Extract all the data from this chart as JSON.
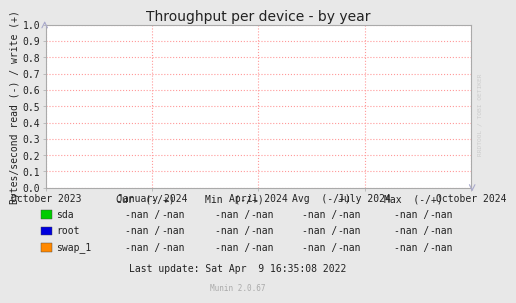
{
  "title": "Throughput per device - by year",
  "ylabel": "Bytes/second read (-) / write (+)",
  "ylim": [
    0,
    1.0
  ],
  "yticks": [
    0.0,
    0.1,
    0.2,
    0.3,
    0.4,
    0.5,
    0.6,
    0.7,
    0.8,
    0.9,
    1.0
  ],
  "x_tick_labels": [
    "October 2023",
    "January 2024",
    "April 2024",
    "July 2024",
    "October 2024"
  ],
  "x_tick_positions": [
    0,
    0.25,
    0.5,
    0.75,
    1.0
  ],
  "bg_color": "#e8e8e8",
  "plot_bg_color": "#ffffff",
  "grid_color": "#ff9999",
  "title_color": "#222222",
  "axis_color": "#222222",
  "legend_items": [
    {
      "label": "sda",
      "color": "#00cc00"
    },
    {
      "label": "root",
      "color": "#0000dd"
    },
    {
      "label": "swap_1",
      "color": "#ff8800"
    }
  ],
  "col_headers": [
    "Cur  (-/+)",
    "Min  (-/+)",
    "Avg  (-/+)",
    "Max  (-/+)"
  ],
  "nan_pair": "-nan /   -nan",
  "last_update": "Last update: Sat Apr  9 16:35:08 2022",
  "munin_version": "Munin 2.0.67",
  "watermark": "RRDTOOL / TOBI OETIKER",
  "title_fontsize": 10,
  "axis_fontsize": 7,
  "table_fontsize": 7,
  "watermark_fontsize": 4.5
}
